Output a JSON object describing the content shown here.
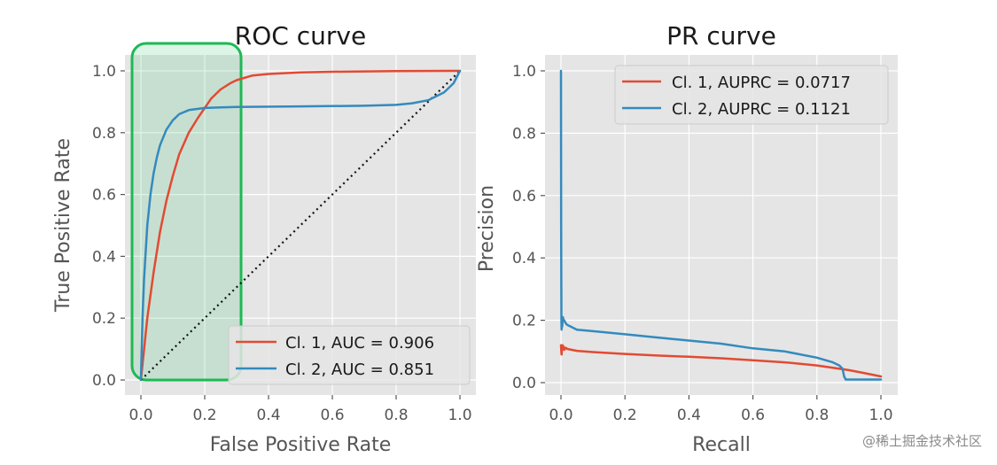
{
  "watermark": "@稀土掘金技术社区",
  "colors": {
    "class1": "#E24A33",
    "class2": "#348ABD",
    "highlight": "#1db954",
    "panel": "#E5E5E5"
  },
  "chart_data": [
    {
      "type": "line",
      "title": "ROC curve",
      "xlabel": "False Positive Rate",
      "ylabel": "True Positive Rate",
      "xlim": [
        0,
        1
      ],
      "ylim": [
        0,
        1
      ],
      "xticks": [
        "0.0",
        "0.2",
        "0.4",
        "0.6",
        "0.8",
        "1.0"
      ],
      "yticks": [
        "0.0",
        "0.2",
        "0.4",
        "0.6",
        "0.8",
        "1.0"
      ],
      "grid": true,
      "legend_position": "lower-right",
      "highlight_region": {
        "x": [
          0,
          0.3
        ],
        "y": [
          0,
          1
        ]
      },
      "diagonal": {
        "x": [
          0,
          1
        ],
        "y": [
          0,
          1
        ],
        "style": "dotted"
      },
      "series": [
        {
          "name": "Cl. 1, AUC = 0.906",
          "x": [
            0,
            0.01,
            0.02,
            0.04,
            0.06,
            0.08,
            0.1,
            0.12,
            0.15,
            0.18,
            0.2,
            0.22,
            0.25,
            0.28,
            0.3,
            0.35,
            0.4,
            0.5,
            0.6,
            0.8,
            1.0
          ],
          "y": [
            0,
            0.1,
            0.2,
            0.35,
            0.48,
            0.58,
            0.66,
            0.73,
            0.8,
            0.85,
            0.88,
            0.91,
            0.94,
            0.96,
            0.97,
            0.985,
            0.99,
            0.995,
            0.997,
            0.999,
            1.0
          ]
        },
        {
          "name": "Cl. 2, AUC = 0.851",
          "x": [
            0,
            0.005,
            0.01,
            0.02,
            0.03,
            0.04,
            0.05,
            0.06,
            0.08,
            0.1,
            0.12,
            0.15,
            0.2,
            0.25,
            0.3,
            0.5,
            0.7,
            0.8,
            0.85,
            0.9,
            0.95,
            0.98,
            1.0
          ],
          "y": [
            0,
            0.2,
            0.33,
            0.5,
            0.6,
            0.67,
            0.72,
            0.76,
            0.81,
            0.84,
            0.86,
            0.873,
            0.88,
            0.882,
            0.883,
            0.885,
            0.887,
            0.89,
            0.895,
            0.905,
            0.93,
            0.96,
            1.0
          ]
        }
      ]
    },
    {
      "type": "line",
      "title": "PR curve",
      "xlabel": "Recall",
      "ylabel": "Precision",
      "xlim": [
        0,
        1
      ],
      "ylim": [
        0,
        1
      ],
      "xticks": [
        "0.0",
        "0.2",
        "0.4",
        "0.6",
        "0.8",
        "1.0"
      ],
      "yticks": [
        "0.0",
        "0.2",
        "0.4",
        "0.6",
        "0.8",
        "1.0"
      ],
      "grid": true,
      "legend_position": "upper-right",
      "series": [
        {
          "name": "Cl. 1, AUPRC = 0.0717",
          "x": [
            0,
            0.001,
            0.002,
            0.003,
            0.005,
            0.008,
            0.01,
            0.015,
            0.02,
            0.05,
            0.1,
            0.2,
            0.3,
            0.4,
            0.5,
            0.6,
            0.7,
            0.8,
            0.9,
            0.95,
            1.0
          ],
          "y": [
            0.12,
            0.1,
            0.09,
            0.11,
            0.12,
            0.115,
            0.105,
            0.112,
            0.108,
            0.102,
            0.098,
            0.092,
            0.087,
            0.083,
            0.078,
            0.072,
            0.065,
            0.055,
            0.04,
            0.03,
            0.02
          ]
        },
        {
          "name": "Cl. 2, AUPRC = 0.1121",
          "x": [
            0,
            0.0005,
            0.001,
            0.0015,
            0.002,
            0.003,
            0.004,
            0.006,
            0.008,
            0.01,
            0.015,
            0.02,
            0.03,
            0.05,
            0.1,
            0.2,
            0.3,
            0.4,
            0.5,
            0.6,
            0.7,
            0.8,
            0.85,
            0.87,
            0.88,
            0.885,
            0.89,
            0.95,
            1.0
          ],
          "y": [
            1.0,
            0.5,
            0.3,
            0.2,
            0.17,
            0.2,
            0.18,
            0.21,
            0.2,
            0.2,
            0.19,
            0.185,
            0.18,
            0.17,
            0.165,
            0.155,
            0.145,
            0.135,
            0.125,
            0.11,
            0.1,
            0.08,
            0.065,
            0.055,
            0.045,
            0.02,
            0.01,
            0.01,
            0.01
          ]
        }
      ]
    }
  ]
}
